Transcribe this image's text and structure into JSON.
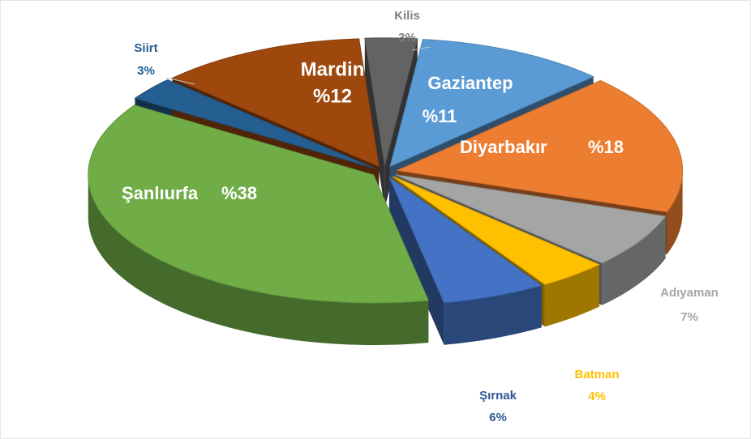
{
  "chart_data": {
    "type": "pie",
    "categories": [
      "Kilis",
      "Gaziantep",
      "Diyarbakır",
      "Adıyaman",
      "Batman",
      "Şırnak",
      "Şanlıurfa",
      "Siirt",
      "Mardin"
    ],
    "values": [
      3,
      11,
      18,
      7,
      4,
      6,
      38,
      3,
      12
    ],
    "value_labels": [
      "3%",
      "%11",
      "%18",
      "7%",
      "4%",
      "6%",
      "%38",
      "3%",
      "%12"
    ],
    "colors": [
      "#636363",
      "#5b9bd5",
      "#ed7d31",
      "#a5a5a5",
      "#ffc000",
      "#4472c4",
      "#70ad47",
      "#255e91",
      "#9e480e"
    ]
  }
}
